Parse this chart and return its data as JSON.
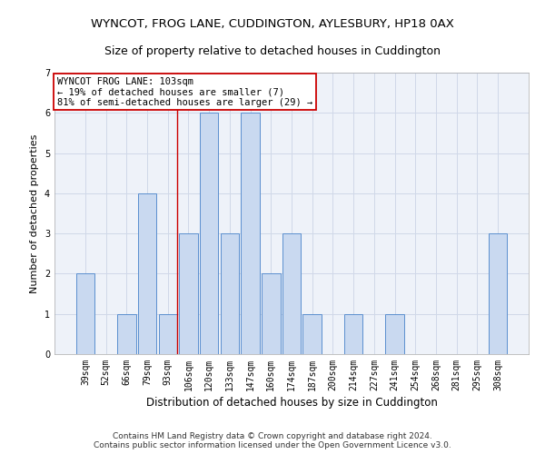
{
  "title": "WYNCOT, FROG LANE, CUDDINGTON, AYLESBURY, HP18 0AX",
  "subtitle": "Size of property relative to detached houses in Cuddington",
  "xlabel": "Distribution of detached houses by size in Cuddington",
  "ylabel": "Number of detached properties",
  "categories": [
    "39sqm",
    "52sqm",
    "66sqm",
    "79sqm",
    "93sqm",
    "106sqm",
    "120sqm",
    "133sqm",
    "147sqm",
    "160sqm",
    "174sqm",
    "187sqm",
    "200sqm",
    "214sqm",
    "227sqm",
    "241sqm",
    "254sqm",
    "268sqm",
    "281sqm",
    "295sqm",
    "308sqm"
  ],
  "values": [
    2,
    0,
    1,
    4,
    1,
    3,
    6,
    3,
    6,
    2,
    3,
    1,
    0,
    1,
    0,
    1,
    0,
    0,
    0,
    0,
    3
  ],
  "bar_color": "#c9d9f0",
  "bar_edge_color": "#5b8fcf",
  "highlight_index": 4,
  "highlight_line_color": "#cc0000",
  "annotation_text": "WYNCOT FROG LANE: 103sqm\n← 19% of detached houses are smaller (7)\n81% of semi-detached houses are larger (29) →",
  "annotation_box_color": "#ffffff",
  "annotation_box_edge_color": "#cc0000",
  "ylim": [
    0,
    7
  ],
  "yticks": [
    0,
    1,
    2,
    3,
    4,
    5,
    6,
    7
  ],
  "grid_color": "#d0d8e8",
  "background_color": "#eef2f9",
  "footer_text": "Contains HM Land Registry data © Crown copyright and database right 2024.\nContains public sector information licensed under the Open Government Licence v3.0.",
  "title_fontsize": 9.5,
  "subtitle_fontsize": 9,
  "xlabel_fontsize": 8.5,
  "ylabel_fontsize": 8,
  "tick_fontsize": 7,
  "annotation_fontsize": 7.5,
  "footer_fontsize": 6.5
}
